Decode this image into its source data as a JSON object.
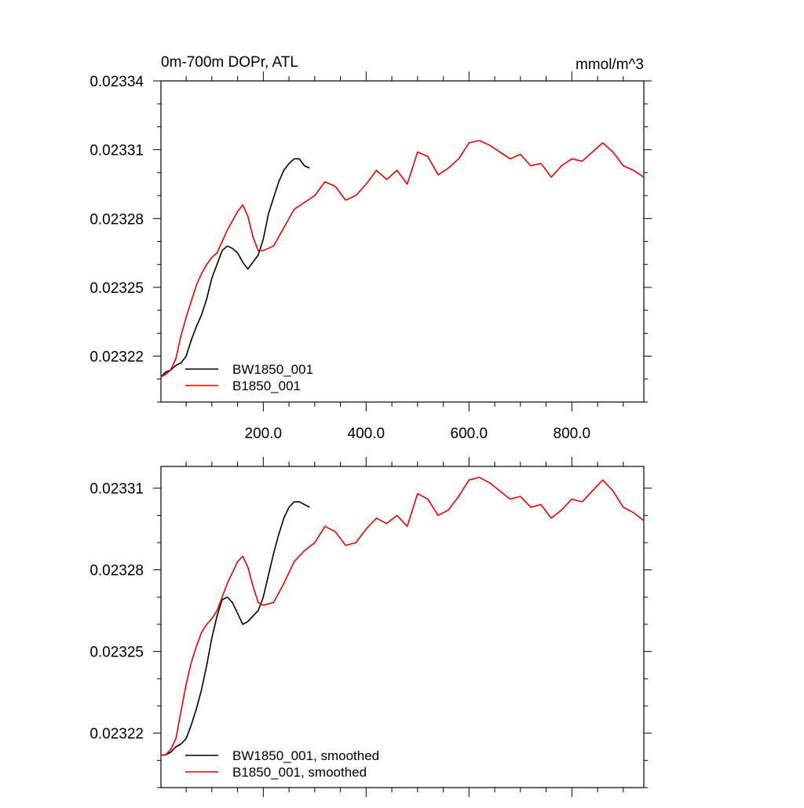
{
  "chart_data": [
    {
      "type": "line",
      "title": "0m-700m DOPr, ATL",
      "units": "mmol/m^3",
      "xlim": [
        1,
        940
      ],
      "ylim": [
        0.0232,
        0.02334
      ],
      "x_ticks": [
        200,
        400,
        600,
        800
      ],
      "x_tick_labels": [
        "200.0",
        "400.0",
        "600.0",
        "800.0"
      ],
      "y_ticks": [
        0.02322,
        0.02325,
        0.02328,
        0.02331,
        0.02334
      ],
      "y_tick_labels": [
        "0.02322",
        "0.02325",
        "0.02328",
        "0.02331",
        "0.02334"
      ],
      "legend": "bottom-left",
      "series": [
        {
          "name": "BW1850_001",
          "color": "#000000",
          "x": [
            1,
            10,
            20,
            30,
            40,
            50,
            60,
            70,
            80,
            90,
            100,
            110,
            120,
            130,
            140,
            150,
            160,
            170,
            180,
            190,
            200,
            210,
            220,
            230,
            240,
            250,
            260,
            270,
            280,
            290
          ],
          "y": [
            0.023211,
            0.023213,
            0.023214,
            0.023216,
            0.023217,
            0.02322,
            0.023227,
            0.023233,
            0.023238,
            0.023245,
            0.023254,
            0.02326,
            0.023266,
            0.023268,
            0.023267,
            0.023265,
            0.023261,
            0.023258,
            0.023261,
            0.023264,
            0.023271,
            0.023282,
            0.023289,
            0.023296,
            0.023301,
            0.023304,
            0.023306,
            0.023306,
            0.023303,
            0.023302
          ]
        },
        {
          "name": "B1850_001",
          "color": "#ee0000",
          "x": [
            1,
            10,
            20,
            30,
            40,
            50,
            60,
            70,
            80,
            90,
            100,
            110,
            120,
            130,
            140,
            150,
            160,
            170,
            180,
            190,
            200,
            220,
            240,
            260,
            280,
            300,
            320,
            340,
            360,
            380,
            400,
            420,
            440,
            460,
            480,
            500,
            520,
            540,
            560,
            580,
            600,
            620,
            640,
            660,
            680,
            700,
            720,
            740,
            760,
            780,
            800,
            820,
            840,
            860,
            880,
            900,
            920,
            940
          ],
          "y": [
            0.023211,
            0.023212,
            0.023214,
            0.023219,
            0.023229,
            0.023237,
            0.023244,
            0.023251,
            0.023256,
            0.02326,
            0.023263,
            0.023265,
            0.02327,
            0.023275,
            0.023279,
            0.023283,
            0.023286,
            0.023281,
            0.023272,
            0.023266,
            0.023266,
            0.023268,
            0.023276,
            0.023284,
            0.023287,
            0.02329,
            0.023296,
            0.023294,
            0.023288,
            0.02329,
            0.023295,
            0.023301,
            0.023297,
            0.023301,
            0.023295,
            0.023309,
            0.023307,
            0.023299,
            0.023302,
            0.023306,
            0.023313,
            0.023314,
            0.023312,
            0.023309,
            0.023306,
            0.023308,
            0.023303,
            0.023304,
            0.023298,
            0.023303,
            0.023306,
            0.023305,
            0.023309,
            0.023313,
            0.023309,
            0.023303,
            0.023301,
            0.023298
          ]
        }
      ]
    },
    {
      "type": "line",
      "xlim": [
        1,
        940
      ],
      "ylim": [
        0.0232,
        0.023318
      ],
      "y_ticks": [
        0.02322,
        0.02325,
        0.02328,
        0.02331
      ],
      "y_tick_labels": [
        "0.02322",
        "0.02325",
        "0.02328",
        "0.02331"
      ],
      "legend": "bottom-left",
      "series": [
        {
          "name": "BW1850_001, smoothed",
          "color": "#000000",
          "x": [
            1,
            10,
            20,
            30,
            40,
            50,
            60,
            70,
            80,
            90,
            100,
            110,
            120,
            130,
            140,
            150,
            160,
            170,
            180,
            190,
            200,
            210,
            220,
            230,
            240,
            250,
            260,
            270,
            280,
            290
          ],
          "y": [
            0.023212,
            0.023212,
            0.023213,
            0.023215,
            0.023216,
            0.023218,
            0.023223,
            0.023229,
            0.023236,
            0.023245,
            0.023255,
            0.023263,
            0.023269,
            0.02327,
            0.023268,
            0.023264,
            0.02326,
            0.023261,
            0.023263,
            0.023265,
            0.02327,
            0.023278,
            0.023286,
            0.023293,
            0.023299,
            0.023303,
            0.023305,
            0.023305,
            0.023304,
            0.023303
          ]
        },
        {
          "name": "B1850_001, smoothed",
          "color": "#ee0000",
          "x": [
            1,
            10,
            20,
            30,
            40,
            50,
            60,
            70,
            80,
            90,
            100,
            110,
            120,
            130,
            140,
            150,
            160,
            170,
            180,
            190,
            200,
            220,
            240,
            260,
            280,
            300,
            320,
            340,
            360,
            380,
            400,
            420,
            440,
            460,
            480,
            500,
            520,
            540,
            560,
            580,
            600,
            620,
            640,
            660,
            680,
            700,
            720,
            740,
            760,
            780,
            800,
            820,
            840,
            860,
            880,
            900,
            920,
            940
          ],
          "y": [
            0.023212,
            0.023212,
            0.023214,
            0.023218,
            0.023228,
            0.023238,
            0.023246,
            0.023252,
            0.023257,
            0.02326,
            0.023262,
            0.023265,
            0.02327,
            0.023275,
            0.023279,
            0.023283,
            0.023285,
            0.023281,
            0.023274,
            0.023268,
            0.023267,
            0.023268,
            0.023275,
            0.023283,
            0.023287,
            0.02329,
            0.023296,
            0.023294,
            0.023289,
            0.02329,
            0.023295,
            0.023299,
            0.023297,
            0.0233,
            0.023296,
            0.023308,
            0.023306,
            0.0233,
            0.023302,
            0.023307,
            0.023313,
            0.023314,
            0.023312,
            0.023309,
            0.023306,
            0.023307,
            0.023303,
            0.023304,
            0.023299,
            0.023302,
            0.023306,
            0.023305,
            0.023309,
            0.023313,
            0.023309,
            0.023303,
            0.023301,
            0.023298
          ]
        }
      ]
    }
  ]
}
